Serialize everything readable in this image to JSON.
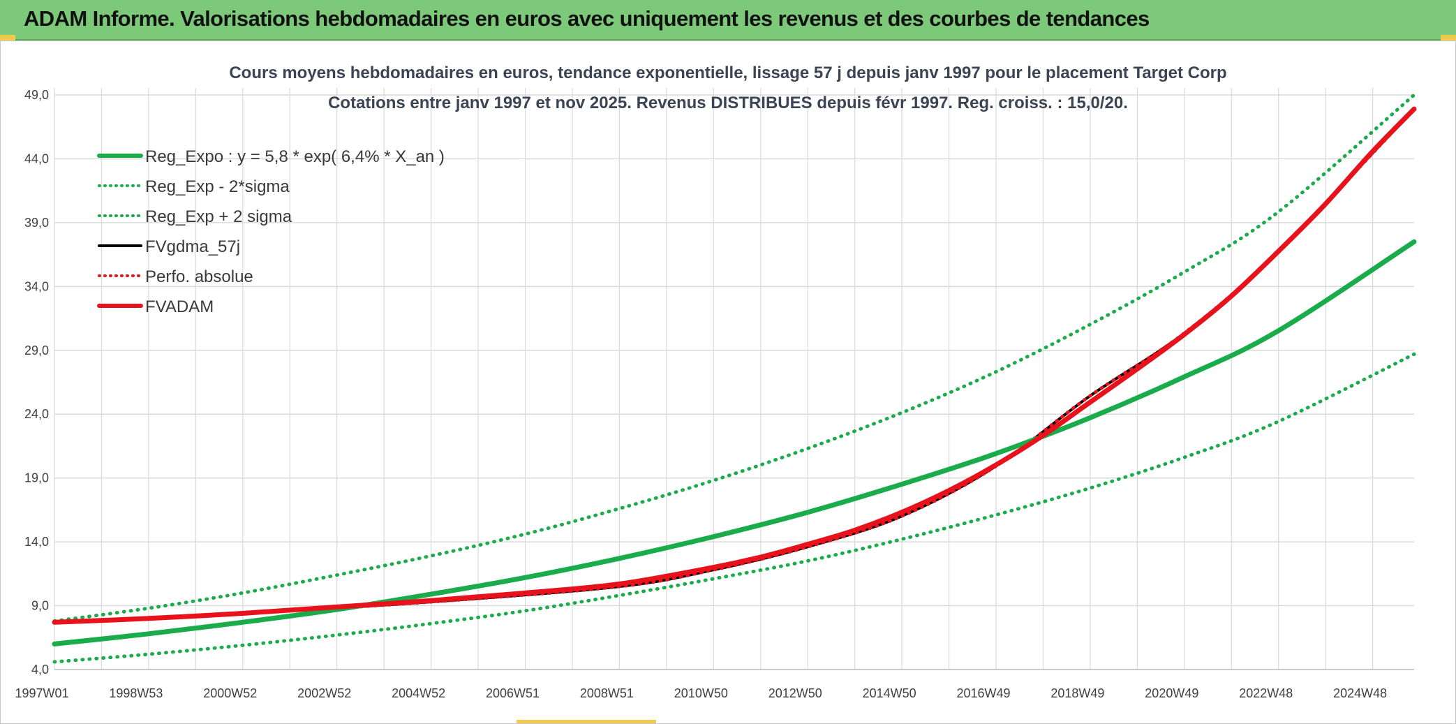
{
  "banner": {
    "title": "ADAM Informe. Valorisations hebdomadaires en euros avec uniquement les revenus et des courbes de tendances"
  },
  "colors": {
    "banner_bg": "#7dc97a",
    "trend_green": "#1aab4a",
    "fvadam_red": "#e8121c",
    "perf_red": "#e8121c",
    "fvgdma_black": "#000000",
    "grid": "#d9d9d9"
  },
  "chart_data": {
    "type": "line",
    "title_line1": "Cours moyens hebdomadaires en euros, tendance exponentielle, lissage 57 j depuis janv 1997 pour le placement Target Corp",
    "title_line2": "Cotations entre janv 1997 et nov 2025. Revenus DISTRIBUES depuis févr 1997. Reg. croiss. : 15,0/20.",
    "x_range": [
      "1997W01",
      "2025W47"
    ],
    "x_tick_labels": [
      "1997W01",
      "1998W53",
      "2000W52",
      "2002W52",
      "2004W52",
      "2006W51",
      "2008W51",
      "2010W50",
      "2012W50",
      "2014W50",
      "2016W49",
      "2018W49",
      "2020W49",
      "2022W48",
      "2024W48"
    ],
    "y_tick_labels": [
      "4,0",
      "9,0",
      "14,0",
      "19,0",
      "24,0",
      "29,0",
      "34,0",
      "39,0",
      "44,0",
      "49,0"
    ],
    "ylim": [
      4,
      50
    ],
    "grid": true,
    "legend_position": "top-left",
    "series": [
      {
        "name": "Reg_Expo : y = 5,8 * exp( 6,4% *  X_an )",
        "style": "solid-thick",
        "color": "#1aab4a",
        "x_year": [
          1997,
          1999,
          2001,
          2003,
          2005,
          2007,
          2009,
          2011,
          2013,
          2015,
          2017,
          2019,
          2021,
          2023,
          2025.9
        ],
        "y": [
          6.0,
          6.8,
          7.7,
          8.7,
          9.9,
          11.2,
          12.7,
          14.4,
          16.3,
          18.5,
          20.9,
          23.7,
          26.9,
          30.5,
          37.5
        ]
      },
      {
        "name": "Reg_Exp - 2*sigma",
        "style": "dotted",
        "color": "#1aab4a",
        "x_year": [
          1997,
          1999,
          2001,
          2003,
          2005,
          2007,
          2009,
          2011,
          2013,
          2015,
          2017,
          2019,
          2021,
          2023,
          2025.9
        ],
        "y": [
          4.6,
          5.2,
          5.9,
          6.7,
          7.6,
          8.6,
          9.8,
          11.1,
          12.5,
          14.2,
          16.1,
          18.2,
          20.6,
          23.4,
          28.7
        ]
      },
      {
        "name": "Reg_Exp + 2 sigma",
        "style": "dotted",
        "color": "#1aab4a",
        "x_year": [
          1997,
          1999,
          2001,
          2003,
          2005,
          2007,
          2009,
          2011,
          2013,
          2015,
          2017,
          2019,
          2021,
          2023,
          2025.9
        ],
        "y": [
          7.8,
          8.8,
          10.0,
          11.4,
          12.9,
          14.6,
          16.6,
          18.8,
          21.3,
          24.1,
          27.3,
          31.0,
          35.1,
          39.8,
          49.0
        ]
      },
      {
        "name": "FVgdma_57j",
        "style": "solid",
        "color": "#000000",
        "x_year": [
          1997,
          2001,
          2005,
          2009,
          2011,
          2013,
          2015,
          2017,
          2019,
          2021,
          2023,
          2025.9
        ],
        "y": [
          7.7,
          8.4,
          9.3,
          10.5,
          11.8,
          13.6,
          16.0,
          19.9,
          25.4,
          30.3,
          36.7,
          47.9
        ]
      },
      {
        "name": "Perfo. absolue",
        "style": "dotted",
        "color": "#e8121c",
        "x_year": [
          1997,
          2001,
          2005,
          2009,
          2011,
          2013,
          2015,
          2017,
          2019,
          2021,
          2023,
          2025.9
        ],
        "y": [
          7.7,
          8.4,
          9.3,
          10.5,
          11.8,
          13.6,
          16.0,
          19.9,
          25.4,
          30.3,
          36.7,
          47.9
        ]
      },
      {
        "name": "FVADAM",
        "style": "solid-thick",
        "color": "#e8121c",
        "x_year": [
          1997,
          1999,
          2001,
          2003,
          2005,
          2007,
          2009,
          2011,
          2012,
          2013,
          2014,
          2015,
          2016,
          2017,
          2018,
          2019,
          2020,
          2021,
          2022,
          2023,
          2024,
          2025,
          2025.9
        ],
        "y": [
          7.7,
          8.0,
          8.4,
          8.9,
          9.4,
          10.0,
          10.7,
          12.0,
          12.8,
          13.8,
          14.9,
          16.3,
          18.0,
          20.0,
          22.3,
          24.9,
          27.5,
          30.2,
          33.2,
          36.7,
          40.4,
          44.5,
          47.9
        ]
      }
    ]
  }
}
